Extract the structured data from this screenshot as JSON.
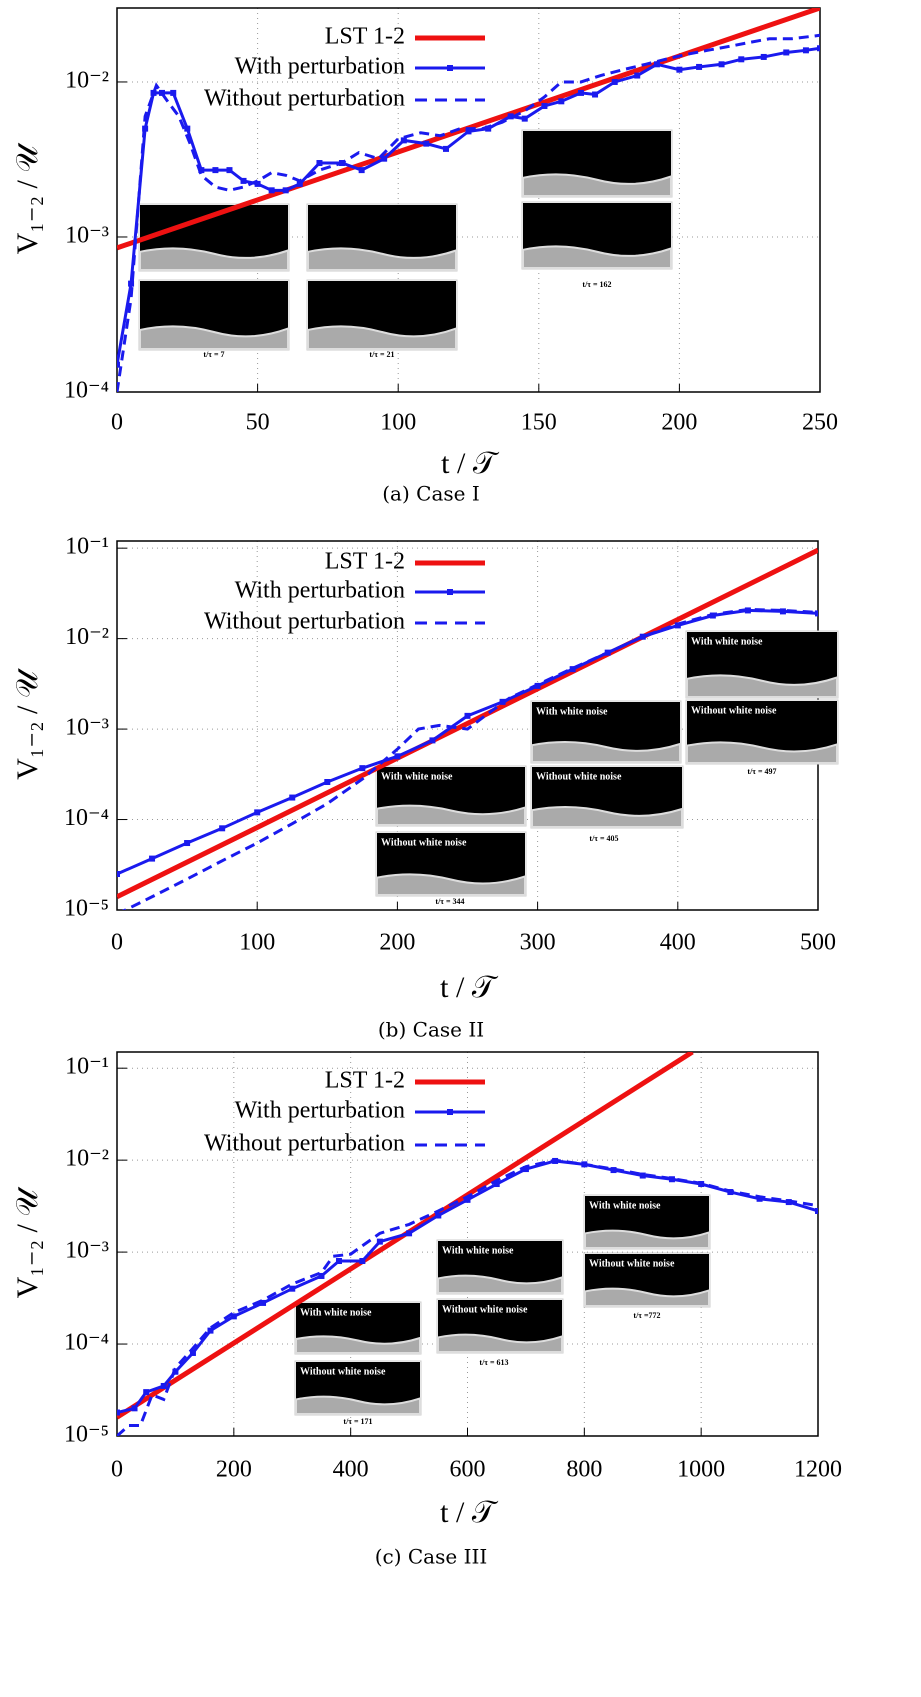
{
  "chart_data": [
    {
      "type": "line",
      "log_y": true,
      "grid": true,
      "legend": "top-left",
      "xlabel": "t / 𝒯",
      "ylabel": "V₁₋₂ / 𝒰",
      "caption": "(a) Case I",
      "xlim": [
        0,
        250
      ],
      "xticks": [
        0,
        50,
        100,
        150,
        200,
        250
      ],
      "ylim": [
        0.0001,
        0.03
      ],
      "yticks": [
        {
          "value": 0.0001,
          "label": "10⁻⁴"
        },
        {
          "value": 0.001,
          "label": "10⁻³"
        },
        {
          "value": 0.01,
          "label": "10⁻²"
        }
      ],
      "annotations": [
        "t/τ = 7",
        "t/τ = 21",
        "t/τ = 162"
      ],
      "series": [
        {
          "name": "LST 1-2",
          "color": "#ee1111",
          "style": "solid",
          "x": [
            0,
            250
          ],
          "values": [
            0.00085,
            0.03
          ]
        },
        {
          "name": "With perturbation",
          "color": "#1a1aee",
          "style": "solid-marker",
          "x": [
            0,
            5,
            10,
            13,
            16,
            20,
            25,
            30,
            35,
            40,
            45,
            50,
            55,
            60,
            65,
            72,
            80,
            87,
            95,
            102,
            110,
            117,
            125,
            132,
            140,
            145,
            152,
            158,
            165,
            170,
            177,
            185,
            192,
            200,
            207,
            215,
            222,
            230,
            238,
            245,
            250
          ],
          "values": [
            0.00015,
            0.0005,
            0.005,
            0.0085,
            0.0085,
            0.0085,
            0.005,
            0.0027,
            0.0027,
            0.0027,
            0.0023,
            0.0022,
            0.002,
            0.002,
            0.0022,
            0.003,
            0.003,
            0.0027,
            0.0032,
            0.0042,
            0.004,
            0.0037,
            0.0048,
            0.005,
            0.006,
            0.0058,
            0.007,
            0.0075,
            0.0085,
            0.0083,
            0.01,
            0.011,
            0.013,
            0.012,
            0.0125,
            0.013,
            0.014,
            0.0145,
            0.0155,
            0.016,
            0.0165
          ]
        },
        {
          "name": "Without perturbation",
          "color": "#1a1aee",
          "style": "dashed",
          "x": [
            0,
            5,
            10,
            14,
            18,
            22,
            26,
            30,
            35,
            40,
            45,
            50,
            55,
            60,
            65,
            72,
            80,
            86,
            93,
            100,
            108,
            115,
            122,
            130,
            137,
            145,
            152,
            158,
            165,
            172,
            180,
            188,
            195,
            202,
            210,
            218,
            225,
            232,
            240,
            250
          ],
          "values": [
            0.0001,
            0.0004,
            0.006,
            0.0095,
            0.0075,
            0.006,
            0.004,
            0.0025,
            0.0021,
            0.002,
            0.0021,
            0.0023,
            0.0026,
            0.0025,
            0.0023,
            0.0027,
            0.003,
            0.0035,
            0.0032,
            0.0043,
            0.0047,
            0.0045,
            0.005,
            0.005,
            0.0055,
            0.0065,
            0.008,
            0.01,
            0.01,
            0.011,
            0.012,
            0.013,
            0.014,
            0.015,
            0.016,
            0.017,
            0.018,
            0.019,
            0.019,
            0.02
          ]
        }
      ]
    },
    {
      "type": "line",
      "log_y": true,
      "grid": true,
      "legend": "top-left",
      "xlabel": "t / 𝒯",
      "ylabel": "V₁₋₂ / 𝒰",
      "caption": "(b) Case II",
      "xlim": [
        0,
        500
      ],
      "xticks": [
        0,
        100,
        200,
        300,
        400,
        500
      ],
      "ylim": [
        1e-05,
        0.12
      ],
      "yticks": [
        {
          "value": 1e-05,
          "label": "10⁻⁵"
        },
        {
          "value": 0.0001,
          "label": "10⁻⁴"
        },
        {
          "value": 0.001,
          "label": "10⁻³"
        },
        {
          "value": 0.01,
          "label": "10⁻²"
        },
        {
          "value": 0.1,
          "label": "10⁻¹"
        }
      ],
      "annotations": [
        "With white noise",
        "Without white noise",
        "t/τ = 344",
        "With white noise",
        "Without white noise",
        "t/τ = 405",
        "With white noise",
        "Without white noise",
        "t/τ = 497"
      ],
      "series": [
        {
          "name": "LST 1-2",
          "color": "#ee1111",
          "style": "solid",
          "x": [
            0,
            500
          ],
          "values": [
            1.4e-05,
            0.095
          ]
        },
        {
          "name": "With perturbation",
          "color": "#1a1aee",
          "style": "solid-marker",
          "x": [
            0,
            25,
            50,
            75,
            100,
            125,
            150,
            175,
            200,
            225,
            250,
            275,
            300,
            325,
            350,
            375,
            400,
            425,
            450,
            475,
            500
          ],
          "values": [
            2.5e-05,
            3.7e-05,
            5.5e-05,
            8e-05,
            0.00012,
            0.000175,
            0.00026,
            0.00037,
            0.0005,
            0.00075,
            0.0014,
            0.002,
            0.003,
            0.0046,
            0.007,
            0.0105,
            0.014,
            0.018,
            0.0205,
            0.02,
            0.019
          ]
        },
        {
          "name": "Without perturbation",
          "color": "#1a1aee",
          "style": "dashed",
          "x": [
            0,
            25,
            50,
            75,
            100,
            125,
            150,
            175,
            200,
            215,
            230,
            250,
            265,
            280,
            300,
            325,
            350,
            375,
            400,
            425,
            450,
            475,
            500
          ],
          "values": [
            9e-06,
            1.4e-05,
            2.2e-05,
            3.5e-05,
            5.5e-05,
            9e-05,
            0.00015,
            0.00028,
            0.0006,
            0.001,
            0.0011,
            0.001,
            0.0015,
            0.0022,
            0.0031,
            0.0047,
            0.007,
            0.0105,
            0.0145,
            0.0185,
            0.021,
            0.0205,
            0.0195
          ]
        }
      ]
    },
    {
      "type": "line",
      "log_y": true,
      "grid": true,
      "legend": "top-left",
      "xlabel": "t / 𝒯",
      "ylabel": "V₁₋₂ / 𝒰",
      "caption": "(c) Case III",
      "xlim": [
        0,
        1200
      ],
      "xticks": [
        0,
        200,
        400,
        600,
        800,
        1000,
        1200
      ],
      "ylim": [
        1e-05,
        0.15
      ],
      "yticks": [
        {
          "value": 1e-05,
          "label": "10⁻⁵"
        },
        {
          "value": 0.0001,
          "label": "10⁻⁴"
        },
        {
          "value": 0.001,
          "label": "10⁻³"
        },
        {
          "value": 0.01,
          "label": "10⁻²"
        },
        {
          "value": 0.1,
          "label": "10⁻¹"
        }
      ],
      "annotations": [
        "With white noise",
        "Without white noise",
        "t/τ = 171",
        "With white noise",
        "Without white noise",
        "t/τ = 613",
        "With white noise",
        "Without white noise",
        "t/τ =772"
      ],
      "series": [
        {
          "name": "LST 1-2",
          "color": "#ee1111",
          "style": "solid",
          "x": [
            0,
            985
          ],
          "values": [
            1.6e-05,
            0.15
          ]
        },
        {
          "name": "With perturbation",
          "color": "#1a1aee",
          "style": "solid-marker",
          "x": [
            0,
            30,
            50,
            80,
            100,
            130,
            160,
            200,
            250,
            300,
            350,
            380,
            420,
            450,
            500,
            550,
            600,
            650,
            700,
            750,
            800,
            850,
            900,
            950,
            1000,
            1050,
            1100,
            1150,
            1200
          ],
          "values": [
            1.8e-05,
            2e-05,
            3e-05,
            3.5e-05,
            5e-05,
            8e-05,
            0.00014,
            0.0002,
            0.00028,
            0.0004,
            0.00055,
            0.0008,
            0.0008,
            0.0013,
            0.0016,
            0.0025,
            0.0037,
            0.0055,
            0.008,
            0.0098,
            0.009,
            0.0078,
            0.0068,
            0.0062,
            0.0055,
            0.0045,
            0.0038,
            0.0035,
            0.0028
          ]
        },
        {
          "name": "Without perturbation",
          "color": "#1a1aee",
          "style": "dashed",
          "x": [
            0,
            20,
            40,
            60,
            80,
            100,
            130,
            160,
            200,
            250,
            300,
            350,
            370,
            400,
            450,
            500,
            550,
            600,
            650,
            700,
            750,
            800,
            850,
            900,
            950,
            1000,
            1050,
            1100,
            1150,
            1200
          ],
          "values": [
            1e-05,
            1.3e-05,
            1.3e-05,
            2.8e-05,
            2.5e-05,
            5.5e-05,
            9e-05,
            0.00015,
            0.00022,
            0.0003,
            0.00045,
            0.0006,
            0.0009,
            0.00095,
            0.0016,
            0.002,
            0.0028,
            0.004,
            0.006,
            0.0085,
            0.01,
            0.009,
            0.008,
            0.007,
            0.0063,
            0.0056,
            0.0046,
            0.004,
            0.0036,
            0.0032
          ]
        }
      ]
    }
  ]
}
